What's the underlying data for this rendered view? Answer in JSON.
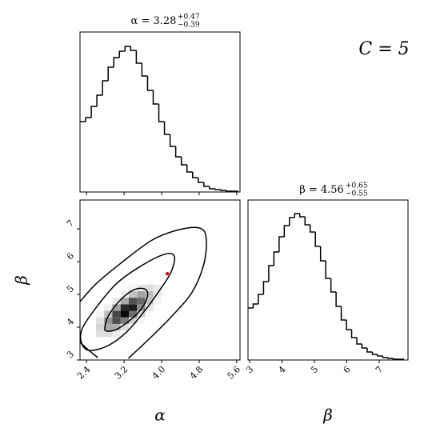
{
  "chart_data": [
    {
      "type": "histogram",
      "title": {
        "text": "α = 3.28",
        "upper": "+0.47",
        "lower": "−0.39"
      },
      "annotation": "C = 5",
      "color": "#000000",
      "xlim": [
        2.26,
        5.67
      ],
      "ylim": [
        0,
        200
      ],
      "xticks": [
        2.4,
        3.2,
        4,
        4.8,
        5.6
      ],
      "bins": [
        2.26,
        2.38,
        2.5,
        2.62,
        2.74,
        2.86,
        2.98,
        3.1,
        3.22,
        3.34,
        3.46,
        3.58,
        3.7,
        3.82,
        3.94,
        4.06,
        4.18,
        4.3,
        4.42,
        4.54,
        4.66,
        4.78,
        4.9,
        5.02,
        5.14,
        5.26,
        5.38,
        5.5,
        5.62
      ],
      "values": [
        88,
        93,
        107,
        121,
        139,
        156,
        168,
        176,
        182,
        177,
        161,
        145,
        127,
        110,
        88,
        72,
        57,
        44,
        34,
        25,
        18,
        12,
        7,
        4,
        3,
        2,
        1,
        1
      ]
    },
    {
      "type": "hist2d",
      "xlabel": "α",
      "ylabel": "β",
      "xlim": [
        2.26,
        5.67
      ],
      "ylim": [
        3,
        7.88
      ],
      "xticks": [
        2.4,
        3.2,
        {
          "value": 4,
          "label": "4.0"
        },
        4.8,
        5.6
      ],
      "yticks": [
        3,
        4,
        5,
        6,
        7
      ],
      "density": {
        "xedges": [
          2.6,
          2.775,
          2.95,
          3.125,
          3.3,
          3.475,
          3.65,
          3.825,
          4.0
        ],
        "yedges": [
          3.7,
          3.9,
          4.1,
          4.3,
          4.5,
          4.7,
          4.9,
          5.1,
          5.3
        ],
        "z": [
          [
            0.12,
            0.13,
            0.07,
            0.02,
            0,
            0,
            0,
            0
          ],
          [
            0.17,
            0.34,
            0.31,
            0.13,
            0.02,
            0,
            0,
            0
          ],
          [
            0.12,
            0.42,
            0.69,
            0.51,
            0.17,
            0.03,
            0,
            0
          ],
          [
            0.04,
            0.25,
            0.73,
            0.96,
            0.57,
            0.16,
            0.02,
            0
          ],
          [
            0,
            0.07,
            0.37,
            0.84,
            0.89,
            0.45,
            0.1,
            0.01
          ],
          [
            0,
            0,
            0.09,
            0.35,
            0.67,
            0.59,
            0.23,
            0.04
          ],
          [
            0,
            0,
            0,
            0.07,
            0.24,
            0.36,
            0.25,
            0.08
          ],
          [
            0,
            0,
            0,
            0,
            0.04,
            0.1,
            0.13,
            0.08
          ]
        ]
      },
      "contour_color": "#000000",
      "contours": [
        {
          "closed": true,
          "x": [
            2.79,
            2.86,
            3.12,
            3.42,
            3.66,
            3.69,
            3.54,
            3.29,
            3.03,
            2.83
          ],
          "y": [
            3.98,
            4.34,
            4.83,
            5.15,
            5.15,
            4.9,
            4.51,
            4.17,
            3.93,
            3.88
          ]
        },
        {
          "closed": true,
          "x": [
            2.3,
            2.6,
            3.03,
            3.54,
            4.05,
            4.27,
            4.2,
            3.93,
            3.59,
            3.25,
            2.86,
            2.47,
            2.3
          ],
          "y": [
            3.93,
            4.59,
            5.32,
            5.85,
            6.22,
            6.17,
            5.68,
            5.07,
            4.41,
            3.85,
            3.44,
            3.29,
            3.49
          ]
        },
        {
          "closed": false,
          "x": [
            2.26,
            2.6,
            3.11,
            3.8,
            4.39,
            4.82,
            4.95,
            4.9,
            4.65,
            4.22,
            3.71,
            3.29,
            null,
            2.26,
            2.43,
            2.64
          ],
          "y": [
            4.78,
            5.32,
            5.93,
            6.66,
            6.98,
            7.02,
            6.71,
            5.93,
            5.07,
            4.34,
            3.61,
            3.05,
            null,
            3.54,
            3.32,
            3.07
          ]
        }
      ],
      "points": {
        "color": "#ff0000",
        "x": [
          4.12
        ],
        "y": [
          5.63
        ]
      }
    },
    {
      "type": "histogram",
      "title": {
        "text": "β = 4.56",
        "upper": "+0.65",
        "lower": "−0.55"
      },
      "xlabel": "β",
      "color": "#000000",
      "xlim": [
        2.95,
        7.89
      ],
      "ylim": [
        0,
        200
      ],
      "xticks": [
        3,
        4,
        5,
        6,
        7
      ],
      "bins": [
        2.95,
        3.11,
        3.27,
        3.43,
        3.59,
        3.75,
        3.91,
        4.07,
        4.23,
        4.39,
        4.55,
        4.71,
        4.87,
        5.03,
        5.19,
        5.35,
        5.51,
        5.67,
        5.83,
        5.99,
        6.15,
        6.31,
        6.47,
        6.63,
        6.79,
        6.95,
        7.11,
        7.27,
        7.43,
        7.59,
        7.75
      ],
      "values": [
        65,
        70,
        82,
        98,
        118,
        135,
        154,
        168,
        178,
        183,
        179,
        169,
        160,
        142,
        124,
        102,
        85,
        67,
        50,
        38,
        28,
        20,
        15,
        10,
        7,
        5,
        3,
        2,
        1,
        1
      ]
    }
  ]
}
